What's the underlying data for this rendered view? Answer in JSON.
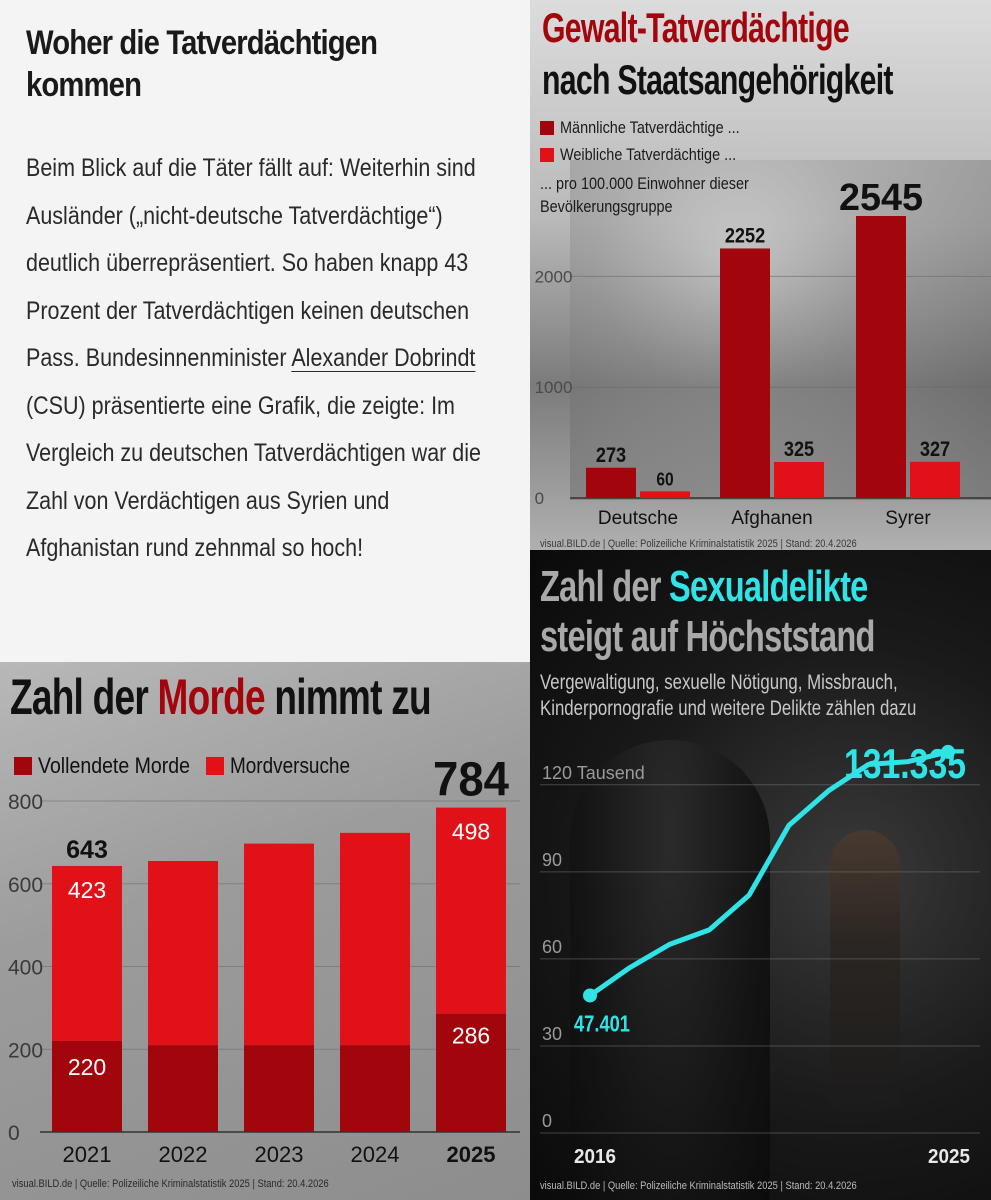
{
  "article": {
    "title": "Woher die Tatverdächtigen kommen",
    "body_before_link": "Beim Blick auf die Täter fällt auf: Weiterhin sind Ausländer („nicht-deutsche Tatverdächtige“) deutlich überrepräsentiert. So haben knapp 43 Prozent der Tatverdächtigen keinen deutschen Pass. Bundesinnenminister ",
    "link_text": "Alexander Dobrindt",
    "body_after_link": " (CSU) präsentierte eine Grafik, die zeigte: Im Vergleich zu deutschen Tatverdächtigen war die Zahl von Verdächtigen aus Syrien und Afghanistan rund zehnmal so hoch!"
  },
  "colors": {
    "dark_red": "#a3050c",
    "bright_red": "#e01217",
    "cyan": "#2fe3e6"
  },
  "panel1": {
    "title_line1": "Gewalt-Tatverdächtige",
    "title_line2": "nach Staatsangehörigkeit",
    "legend_male": "Männliche Tatverdächtige ...",
    "legend_female": "Weibliche Tatverdächtige ...",
    "note": "... pro 100.000 Einwohner dieser Bevölkerungsgruppe",
    "source": "visual.BILD.de | Quelle: Polizeiliche Kriminalstatistik 2025 | Stand: 20.4.2026"
  },
  "panel2": {
    "title_pre": "Zahl der ",
    "title_accent": "Morde",
    "title_post": " nimmt zu",
    "legend_completed": "Vollendete Morde",
    "legend_attempts": "Mordversuche",
    "source": "visual.BILD.de | Quelle: Polizeiliche Kriminalstatistik 2025 | Stand: 20.4.2026"
  },
  "panel3": {
    "title_pre": "Zahl der ",
    "title_accent": "Sexualdelikte",
    "title_line2": "steigt auf Höchststand",
    "subtitle": "Vergewaltigung, sexuelle Nötigung, Missbrauch, Kinderpornografie und weitere Delikte zählen dazu",
    "source": "visual.BILD.de | Quelle: Polizeiliche Kriminalstatistik 2025 | Stand: 20.4.2026"
  },
  "chart_data": [
    {
      "type": "bar",
      "title": "Gewalt-Tatverdächtige nach Staatsangehörigkeit",
      "categories": [
        "Deutsche",
        "Afghanen",
        "Syrer"
      ],
      "series": [
        {
          "name": "Männliche Tatverdächtige ...",
          "values": [
            273,
            2252,
            2545
          ]
        },
        {
          "name": "Weibliche Tatverdächtige ...",
          "values": [
            60,
            325,
            327
          ]
        }
      ],
      "value_labels": [
        [
          "273",
          "2252",
          "2545"
        ],
        [
          "60",
          "325",
          "327"
        ]
      ],
      "yticks": [
        0,
        1000,
        2000
      ],
      "ytick_labels": [
        "0",
        "1000",
        "2000"
      ],
      "ylim": [
        0,
        2545
      ],
      "grid": true,
      "legend": "top-left"
    },
    {
      "type": "bar",
      "stacked": true,
      "title": "Zahl der Morde nimmt zu",
      "categories": [
        "2021",
        "2022",
        "2023",
        "2024",
        "2025"
      ],
      "totals": [
        643,
        655,
        697,
        723,
        784
      ],
      "series": [
        {
          "name": "Vollendete Morde",
          "values": [
            220,
            210,
            210,
            210,
            286
          ]
        },
        {
          "name": "Mordversuche",
          "values": [
            423,
            445,
            487,
            513,
            498
          ]
        }
      ],
      "labels": {
        "total_2021": "643",
        "total_2025": "784",
        "completed_2021": "220",
        "attempts_2021": "423",
        "completed_2025": "286",
        "attempts_2025": "498"
      },
      "yticks": [
        0,
        200,
        400,
        600,
        800
      ],
      "ytick_labels": [
        "0",
        "200",
        "400",
        "600",
        "800"
      ],
      "ylim": [
        0,
        800
      ],
      "grid": true,
      "legend": "top-left"
    },
    {
      "type": "line",
      "title": "Zahl der Sexualdelikte steigt auf Höchststand",
      "x": [
        2016,
        2017,
        2018,
        2019,
        2020,
        2021,
        2022,
        2023,
        2024,
        2025
      ],
      "values": [
        47401,
        57000,
        65000,
        70000,
        82000,
        106000,
        118000,
        127000,
        128000,
        131335
      ],
      "start_label": "47.401",
      "end_label": "131.335",
      "x_start_label": "2016",
      "x_end_label": "2025",
      "yticks": [
        0,
        30000,
        60000,
        90000,
        120000
      ],
      "ytick_labels": [
        "0",
        "30",
        "60",
        "90",
        "120 Tausend"
      ],
      "ylim": [
        0,
        131335
      ],
      "grid": true
    }
  ]
}
